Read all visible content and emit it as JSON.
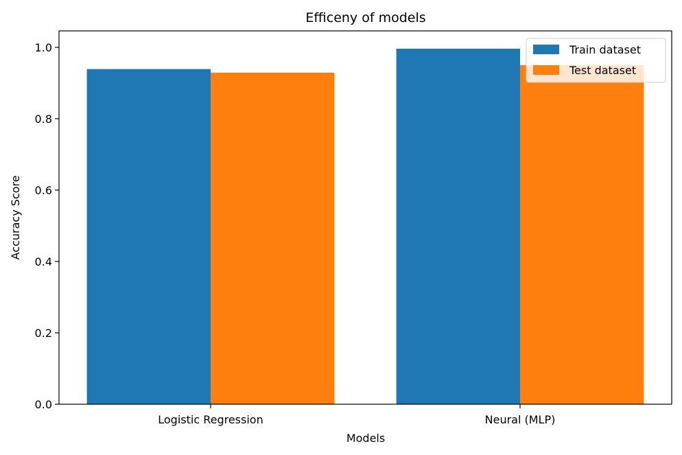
{
  "chart_data": {
    "type": "bar",
    "title": "Efficeny of models",
    "xlabel": "Models",
    "ylabel": "Accuracy Score",
    "categories": [
      "Logistic Regression",
      "Neural (MLP)"
    ],
    "series": [
      {
        "name": "Train dataset",
        "color": "#1f77b4",
        "values": [
          0.939,
          0.996
        ]
      },
      {
        "name": "Test dataset",
        "color": "#ff7f0e",
        "values": [
          0.929,
          0.95
        ]
      }
    ],
    "ylim": [
      0,
      1.046
    ],
    "yticks": [
      "0.0",
      "0.2",
      "0.4",
      "0.6",
      "0.8",
      "1.0"
    ],
    "legend_position": "top-right",
    "grid": false
  }
}
